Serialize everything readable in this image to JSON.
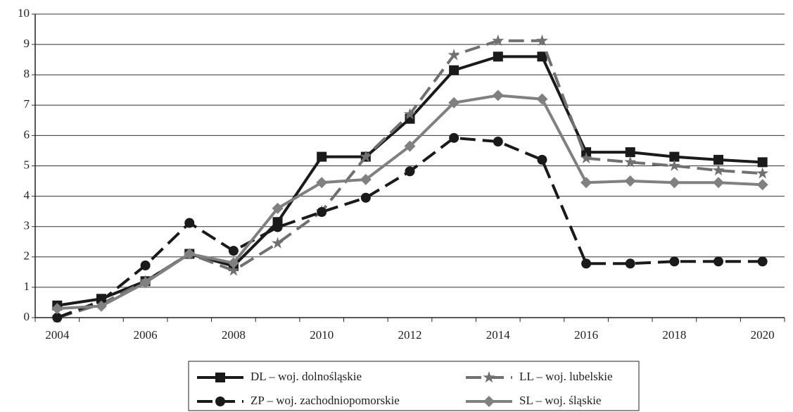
{
  "chart_data": {
    "type": "line",
    "categories": [
      "2004",
      null,
      "2006",
      null,
      "2008",
      null,
      "2010",
      null,
      "2012",
      null,
      "2014",
      null,
      "2016",
      null,
      "2018",
      null,
      "2020"
    ],
    "ylim": [
      0,
      10
    ],
    "yticks": [
      0,
      1,
      2,
      3,
      4,
      5,
      6,
      7,
      8,
      9,
      10
    ],
    "grid": true,
    "series": [
      {
        "name": "DL – woj. dolnośląskie",
        "color": "#1a1a1a",
        "dashed": false,
        "marker": "square",
        "values": [
          0.4,
          0.62,
          1.2,
          2.1,
          1.7,
          3.15,
          5.3,
          5.3,
          6.55,
          8.15,
          8.6,
          8.6,
          5.45,
          5.45,
          5.3,
          5.2,
          5.12
        ]
      },
      {
        "name": "LL – woj. lubelskie",
        "color": "#707070",
        "dashed": true,
        "marker": "star",
        "values": [
          0,
          0.45,
          1.2,
          2.1,
          1.55,
          2.45,
          3.5,
          5.3,
          6.7,
          8.65,
          9.12,
          9.12,
          5.25,
          5.12,
          5.0,
          4.85,
          4.75
        ]
      },
      {
        "name": "ZP – woj. zachodniopomorskie",
        "color": "#1a1a1a",
        "dashed": true,
        "marker": "circle",
        "values": [
          0,
          0.55,
          1.72,
          3.12,
          2.2,
          2.98,
          3.48,
          3.95,
          4.82,
          5.92,
          5.8,
          5.2,
          1.78,
          1.78,
          1.85,
          1.85,
          1.85
        ]
      },
      {
        "name": "SL – woj. śląskie",
        "color": "#808080",
        "dashed": false,
        "marker": "diamond",
        "values": [
          0.3,
          0.38,
          1.15,
          2.1,
          1.8,
          3.6,
          4.45,
          4.55,
          5.65,
          7.08,
          7.32,
          7.2,
          4.45,
          4.5,
          4.45,
          4.45,
          4.38
        ]
      }
    ]
  }
}
